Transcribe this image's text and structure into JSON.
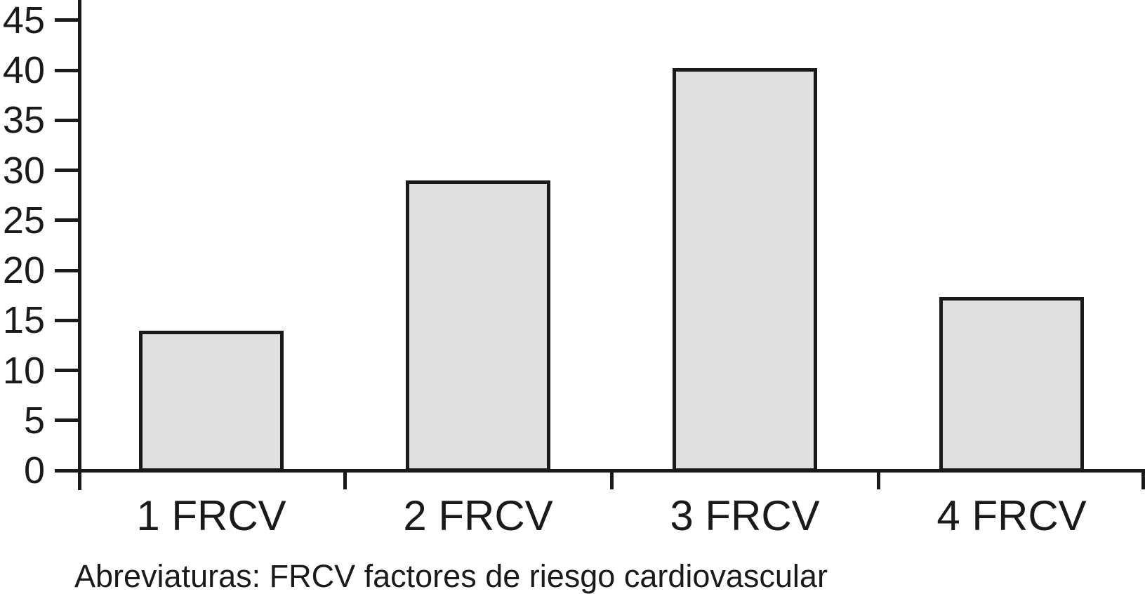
{
  "chart_data": {
    "type": "bar",
    "categories": [
      "1 FRCV",
      "2 FRCV",
      "3 FRCV",
      "4 FRCV"
    ],
    "values": [
      14,
      29,
      40.2,
      17.3
    ],
    "title": "",
    "xlabel": "",
    "ylabel": "",
    "ylim": [
      0,
      47
    ],
    "yticks": [
      0,
      5,
      10,
      15,
      20,
      25,
      30,
      35,
      40,
      45
    ],
    "grid": false,
    "legend": null,
    "bar_fill_color": "#e0e0e0",
    "bar_border_color": "#1a1a1a",
    "axis_color": "#1a1a1a",
    "background_color": "#ffffff"
  },
  "footnote": "Abreviaturas: FRCV factores de riesgo cardiovascular"
}
